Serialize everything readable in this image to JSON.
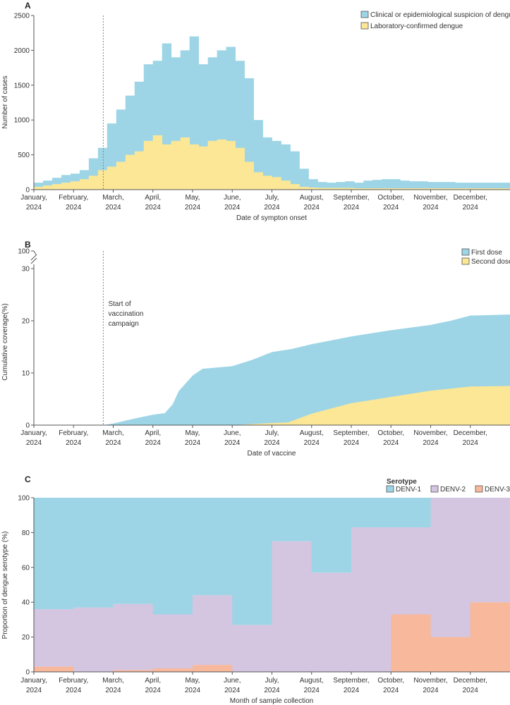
{
  "colors": {
    "blue": "#9dd5e6",
    "yellow": "#fbe796",
    "purple": "#d4c5e0",
    "salmon": "#f8b89b",
    "dash": "#888888"
  },
  "month_labels": [
    "January, 2024",
    "February, 2024",
    "March, 2024",
    "April, 2024",
    "May, 2024",
    "June, 2024",
    "July, 2024",
    "August, 2024",
    "September, 2024",
    "October, 2024",
    "November, 2024",
    "December, 2024"
  ],
  "chart_data": [
    {
      "panel": "A",
      "type": "area",
      "xlabel": "Date of sympton onset",
      "ylabel": "Number of cases",
      "ylim": [
        0,
        2500
      ],
      "yticks": [
        0,
        500,
        1000,
        1500,
        2000,
        2500
      ],
      "x_unit": "week of 2024",
      "legend_position": "top-right",
      "marker_line": {
        "label": "",
        "month": 1.75
      },
      "series": [
        {
          "name": "Clinical or epidemiological suspicion of dengue",
          "color_key": "blue",
          "values": [
            100,
            130,
            170,
            210,
            230,
            280,
            450,
            600,
            950,
            1150,
            1350,
            1550,
            1800,
            1850,
            2100,
            1900,
            2000,
            2200,
            1800,
            1900,
            2000,
            2050,
            1850,
            1600,
            1000,
            750,
            700,
            650,
            550,
            300,
            150,
            110,
            100,
            110,
            120,
            100,
            130,
            140,
            150,
            150,
            130,
            120,
            120,
            110,
            110,
            110,
            100,
            100,
            100,
            100,
            100,
            100
          ]
        },
        {
          "name": "Laboratory-confirmed dengue",
          "color_key": "yellow",
          "values": [
            40,
            60,
            80,
            100,
            120,
            150,
            200,
            280,
            330,
            400,
            500,
            550,
            700,
            780,
            650,
            700,
            750,
            650,
            620,
            700,
            720,
            700,
            600,
            400,
            250,
            200,
            180,
            130,
            80,
            40,
            30,
            25,
            25,
            25,
            25,
            20,
            20,
            20,
            20,
            20,
            20,
            20,
            20,
            20,
            20,
            20,
            20,
            20,
            20,
            20,
            20,
            20
          ]
        }
      ]
    },
    {
      "panel": "B",
      "type": "area",
      "xlabel": "Date of vaccine",
      "ylabel": "Cumulative coverage(%)",
      "yticks": [
        "0",
        "10",
        "20",
        "30",
        "100"
      ],
      "ylim": [
        0,
        30
      ],
      "axis_break": [
        30,
        100
      ],
      "legend_position": "top-right",
      "annotation": {
        "lines": [
          "Start of",
          "vaccination",
          "campaign"
        ],
        "month": 1.75
      },
      "series": [
        {
          "name": "First dose",
          "color_key": "blue",
          "points": [
            [
              1.75,
              0
            ],
            [
              2.0,
              0.3
            ],
            [
              2.5,
              1.2
            ],
            [
              3.0,
              2.0
            ],
            [
              3.3,
              2.3
            ],
            [
              3.5,
              4.0
            ],
            [
              3.65,
              6.5
            ],
            [
              4.0,
              9.5
            ],
            [
              4.25,
              10.8
            ],
            [
              5.0,
              11.3
            ],
            [
              5.5,
              12.5
            ],
            [
              6.0,
              14.0
            ],
            [
              6.5,
              14.6
            ],
            [
              7.0,
              15.5
            ],
            [
              8.0,
              17.0
            ],
            [
              9.0,
              18.2
            ],
            [
              10.0,
              19.2
            ],
            [
              10.5,
              20.0
            ],
            [
              11.0,
              21.0
            ],
            [
              12.0,
              21.2
            ]
          ]
        },
        {
          "name": "Second dose",
          "color_key": "yellow",
          "points": [
            [
              5.0,
              0
            ],
            [
              6.0,
              0.4
            ],
            [
              6.4,
              0.5
            ],
            [
              7.0,
              2.2
            ],
            [
              8.0,
              4.2
            ],
            [
              9.0,
              5.4
            ],
            [
              10.0,
              6.6
            ],
            [
              11.0,
              7.4
            ],
            [
              12.0,
              7.5
            ]
          ]
        }
      ]
    },
    {
      "panel": "C",
      "type": "bar",
      "stacked": true,
      "xlabel": "Month of sample collection",
      "ylabel": "Proportion of dengue serotype (%)",
      "ylim": [
        0,
        100
      ],
      "yticks": [
        0,
        20,
        40,
        60,
        80,
        100
      ],
      "legend_title": "Serotype",
      "legend_position": "top-right",
      "categories": [
        "January, 2024",
        "February, 2024",
        "March, 2024",
        "April, 2024",
        "May, 2024",
        "June, 2024",
        "July, 2024",
        "August, 2024",
        "September, 2024",
        "October, 2024",
        "November, 2024",
        "December, 2024"
      ],
      "series": [
        {
          "name": "DENV-3",
          "color_key": "salmon",
          "values": [
            3,
            0,
            1,
            2,
            4,
            0,
            0,
            0,
            0,
            33,
            20,
            40
          ]
        },
        {
          "name": "DENV-2",
          "color_key": "purple",
          "values": [
            33,
            37,
            38,
            31,
            40,
            27,
            75,
            57,
            83,
            50,
            80,
            60
          ]
        },
        {
          "name": "DENV-1",
          "color_key": "blue",
          "values": [
            64,
            63,
            61,
            67,
            56,
            73,
            25,
            43,
            17,
            17,
            0,
            0
          ]
        }
      ]
    }
  ],
  "panels": {
    "a": "A",
    "b": "B",
    "c": "C"
  }
}
